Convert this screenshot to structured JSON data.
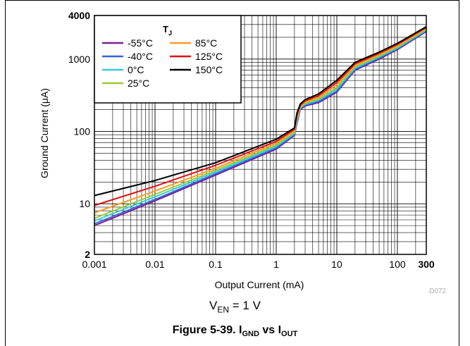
{
  "chart_data": {
    "type": "line",
    "title": "",
    "xlabel": "Output Current (mA)",
    "ylabel": "Ground Current (μA)",
    "x_scale": "log",
    "y_scale": "log",
    "xlim": [
      0.001,
      300
    ],
    "ylim": [
      2,
      4000
    ],
    "x_ticks": [
      0.001,
      0.01,
      0.1,
      1,
      10,
      100,
      300
    ],
    "x_tick_labels": [
      "0.001",
      "0.01",
      "0.1",
      "1",
      "10",
      "100",
      "300"
    ],
    "y_ticks": [
      2,
      10,
      100,
      1000,
      4000
    ],
    "y_tick_labels": [
      "2",
      "10",
      "100",
      "1000",
      "4000"
    ],
    "grid": true,
    "legend": {
      "title_main": "T",
      "title_sub": "J",
      "placement": "top-left"
    },
    "x": [
      0.001,
      0.01,
      0.1,
      1,
      2,
      2.2,
      2.5,
      3,
      5,
      10,
      20,
      50,
      100,
      300
    ],
    "series": [
      {
        "name": "-55°C",
        "color": "#7b1f8f",
        "values": [
          5.0,
          11,
          25,
          57,
          88,
          130,
          200,
          225,
          250,
          350,
          700,
          1000,
          1350,
          2400
        ]
      },
      {
        "name": "-40°C",
        "color": "#3366dd",
        "values": [
          5.3,
          11.5,
          26,
          59,
          90,
          135,
          205,
          230,
          258,
          360,
          720,
          1030,
          1380,
          2450
        ]
      },
      {
        "name": "0°C",
        "color": "#33ccdd",
        "values": [
          5.8,
          12.5,
          27.5,
          62,
          94,
          142,
          210,
          238,
          270,
          385,
          750,
          1070,
          1430,
          2520
        ]
      },
      {
        "name": "25°C",
        "color": "#99cc33",
        "values": [
          6.3,
          13.5,
          29,
          65,
          97,
          150,
          215,
          245,
          280,
          405,
          780,
          1100,
          1470,
          2580
        ]
      },
      {
        "name": "85°C",
        "color": "#ff9922",
        "values": [
          7.5,
          15,
          31,
          69,
          102,
          158,
          222,
          255,
          295,
          440,
          820,
          1150,
          1530,
          2660
        ]
      },
      {
        "name": "125°C",
        "color": "#dd1111",
        "values": [
          9.5,
          17.5,
          34,
          73,
          107,
          168,
          230,
          265,
          312,
          475,
          860,
          1200,
          1590,
          2730
        ]
      },
      {
        "name": "150°C",
        "color": "#000000",
        "values": [
          13,
          21,
          37,
          78,
          112,
          180,
          240,
          275,
          330,
          510,
          900,
          1250,
          1650,
          2800
        ]
      }
    ]
  },
  "watermark": "D072",
  "condition": {
    "main": "V",
    "sub": "EN",
    "rest": " = 1 V"
  },
  "caption": {
    "prefix": "Figure 5-39. I",
    "sub1": "GND",
    "mid": " vs I",
    "sub2": "OUT"
  }
}
